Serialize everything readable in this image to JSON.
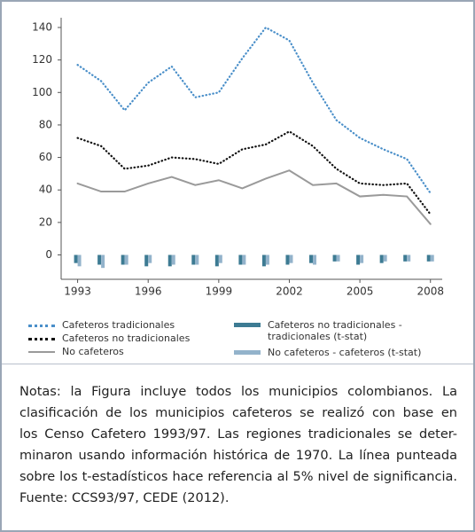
{
  "chart_data": {
    "type": "line",
    "x": [
      1993,
      1994,
      1995,
      1996,
      1997,
      1998,
      1999,
      2000,
      2001,
      2002,
      2003,
      2004,
      2005,
      2006,
      2007,
      2008
    ],
    "series": [
      {
        "name": "Cafeteros tradicionales",
        "color": "#4a8fc9",
        "style": "dotted",
        "values": [
          117,
          107,
          89,
          106,
          116,
          97,
          100,
          121,
          140,
          132,
          106,
          83,
          72,
          65,
          59,
          38
        ]
      },
      {
        "name": "Cafeteros no tradicionales",
        "color": "#111111",
        "style": "dotted",
        "values": [
          72,
          67,
          53,
          55,
          60,
          59,
          56,
          65,
          68,
          76,
          67,
          53,
          44,
          43,
          44,
          25
        ]
      },
      {
        "name": "No cafeteros",
        "color": "#9a9a9a",
        "style": "solid",
        "values": [
          44,
          39,
          39,
          44,
          48,
          43,
          46,
          41,
          47,
          52,
          43,
          44,
          36,
          37,
          36,
          19
        ]
      },
      {
        "name": "Cafeteros no tradicionales - tradicionales (t-stat)",
        "color": "#3d7b93",
        "kind": "bar",
        "values": [
          -5,
          -6,
          -6,
          -7,
          -7,
          -6,
          -7,
          -6,
          -7,
          -6,
          -5,
          -4,
          -6,
          -5,
          -4,
          -4
        ]
      },
      {
        "name": "No cafeteros - cafeteros (t-stat)",
        "color": "#93b3cb",
        "kind": "bar",
        "values": [
          -7,
          -8,
          -6,
          -5,
          -6,
          -6,
          -5,
          -6,
          -6,
          -5,
          -6,
          -4,
          -5,
          -4,
          -4,
          -4
        ]
      }
    ],
    "xlim": [
      1992.3,
      2008.5
    ],
    "xticks": [
      1993,
      1996,
      1999,
      2002,
      2005,
      2008
    ],
    "ylim": [
      -15,
      146
    ],
    "yticks": [
      0,
      20,
      40,
      60,
      80,
      100,
      120,
      140
    ]
  },
  "notes": {
    "lines": [
      "Notas: la Figura incluye todos los municipios colombianos. La",
      "clasificación de los municipios cafeteros se realizó con base en",
      "los Censo Cafetero 1993/97. Las regiones tradicionales se deter-",
      "minaron usando información histórica de 1970. La línea punteada",
      "sobre los t-estadísticos hace referencia al 5% nivel de significancia.",
      "Fuente: CCS93/97, CEDE (2012)."
    ]
  }
}
